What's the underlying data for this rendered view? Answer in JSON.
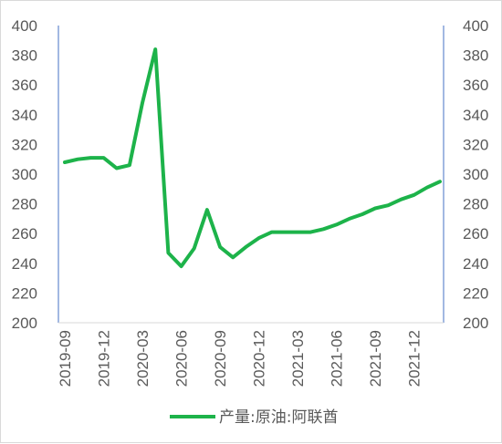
{
  "chart_data": {
    "type": "line",
    "title": "",
    "xlabel": "",
    "ylabel": "",
    "ylim": [
      200,
      400
    ],
    "y_ticks": [
      "200",
      "220",
      "240",
      "260",
      "280",
      "300",
      "320",
      "340",
      "360",
      "380",
      "400"
    ],
    "y2_ticks": [
      "200",
      "220",
      "240",
      "260",
      "280",
      "300",
      "320",
      "340",
      "360",
      "380",
      "400"
    ],
    "x_tick_labels": [
      "2019-09",
      "2019-12",
      "2020-03",
      "2020-06",
      "2020-09",
      "2020-12",
      "2021-03",
      "2021-06",
      "2021-09",
      "2021-12"
    ],
    "grid": false,
    "legend_position": "bottom",
    "x": [
      "2019-09",
      "2019-10",
      "2019-11",
      "2019-12",
      "2020-01",
      "2020-02",
      "2020-03",
      "2020-04",
      "2020-05",
      "2020-06",
      "2020-07",
      "2020-08",
      "2020-09",
      "2020-10",
      "2020-11",
      "2020-12",
      "2021-01",
      "2021-02",
      "2021-03",
      "2021-04",
      "2021-05",
      "2021-06",
      "2021-07",
      "2021-08",
      "2021-09",
      "2021-10",
      "2021-11",
      "2021-12",
      "2022-01",
      "2022-02"
    ],
    "series": [
      {
        "name": "产量:原油:阿联酋",
        "color": "#1db34a",
        "values": [
          308,
          310,
          311,
          311,
          304,
          306,
          348,
          384,
          247,
          238,
          250,
          276,
          251,
          244,
          251,
          257,
          261,
          261,
          261,
          261,
          263,
          266,
          270,
          273,
          277,
          279,
          283,
          286,
          291,
          295
        ]
      }
    ]
  }
}
